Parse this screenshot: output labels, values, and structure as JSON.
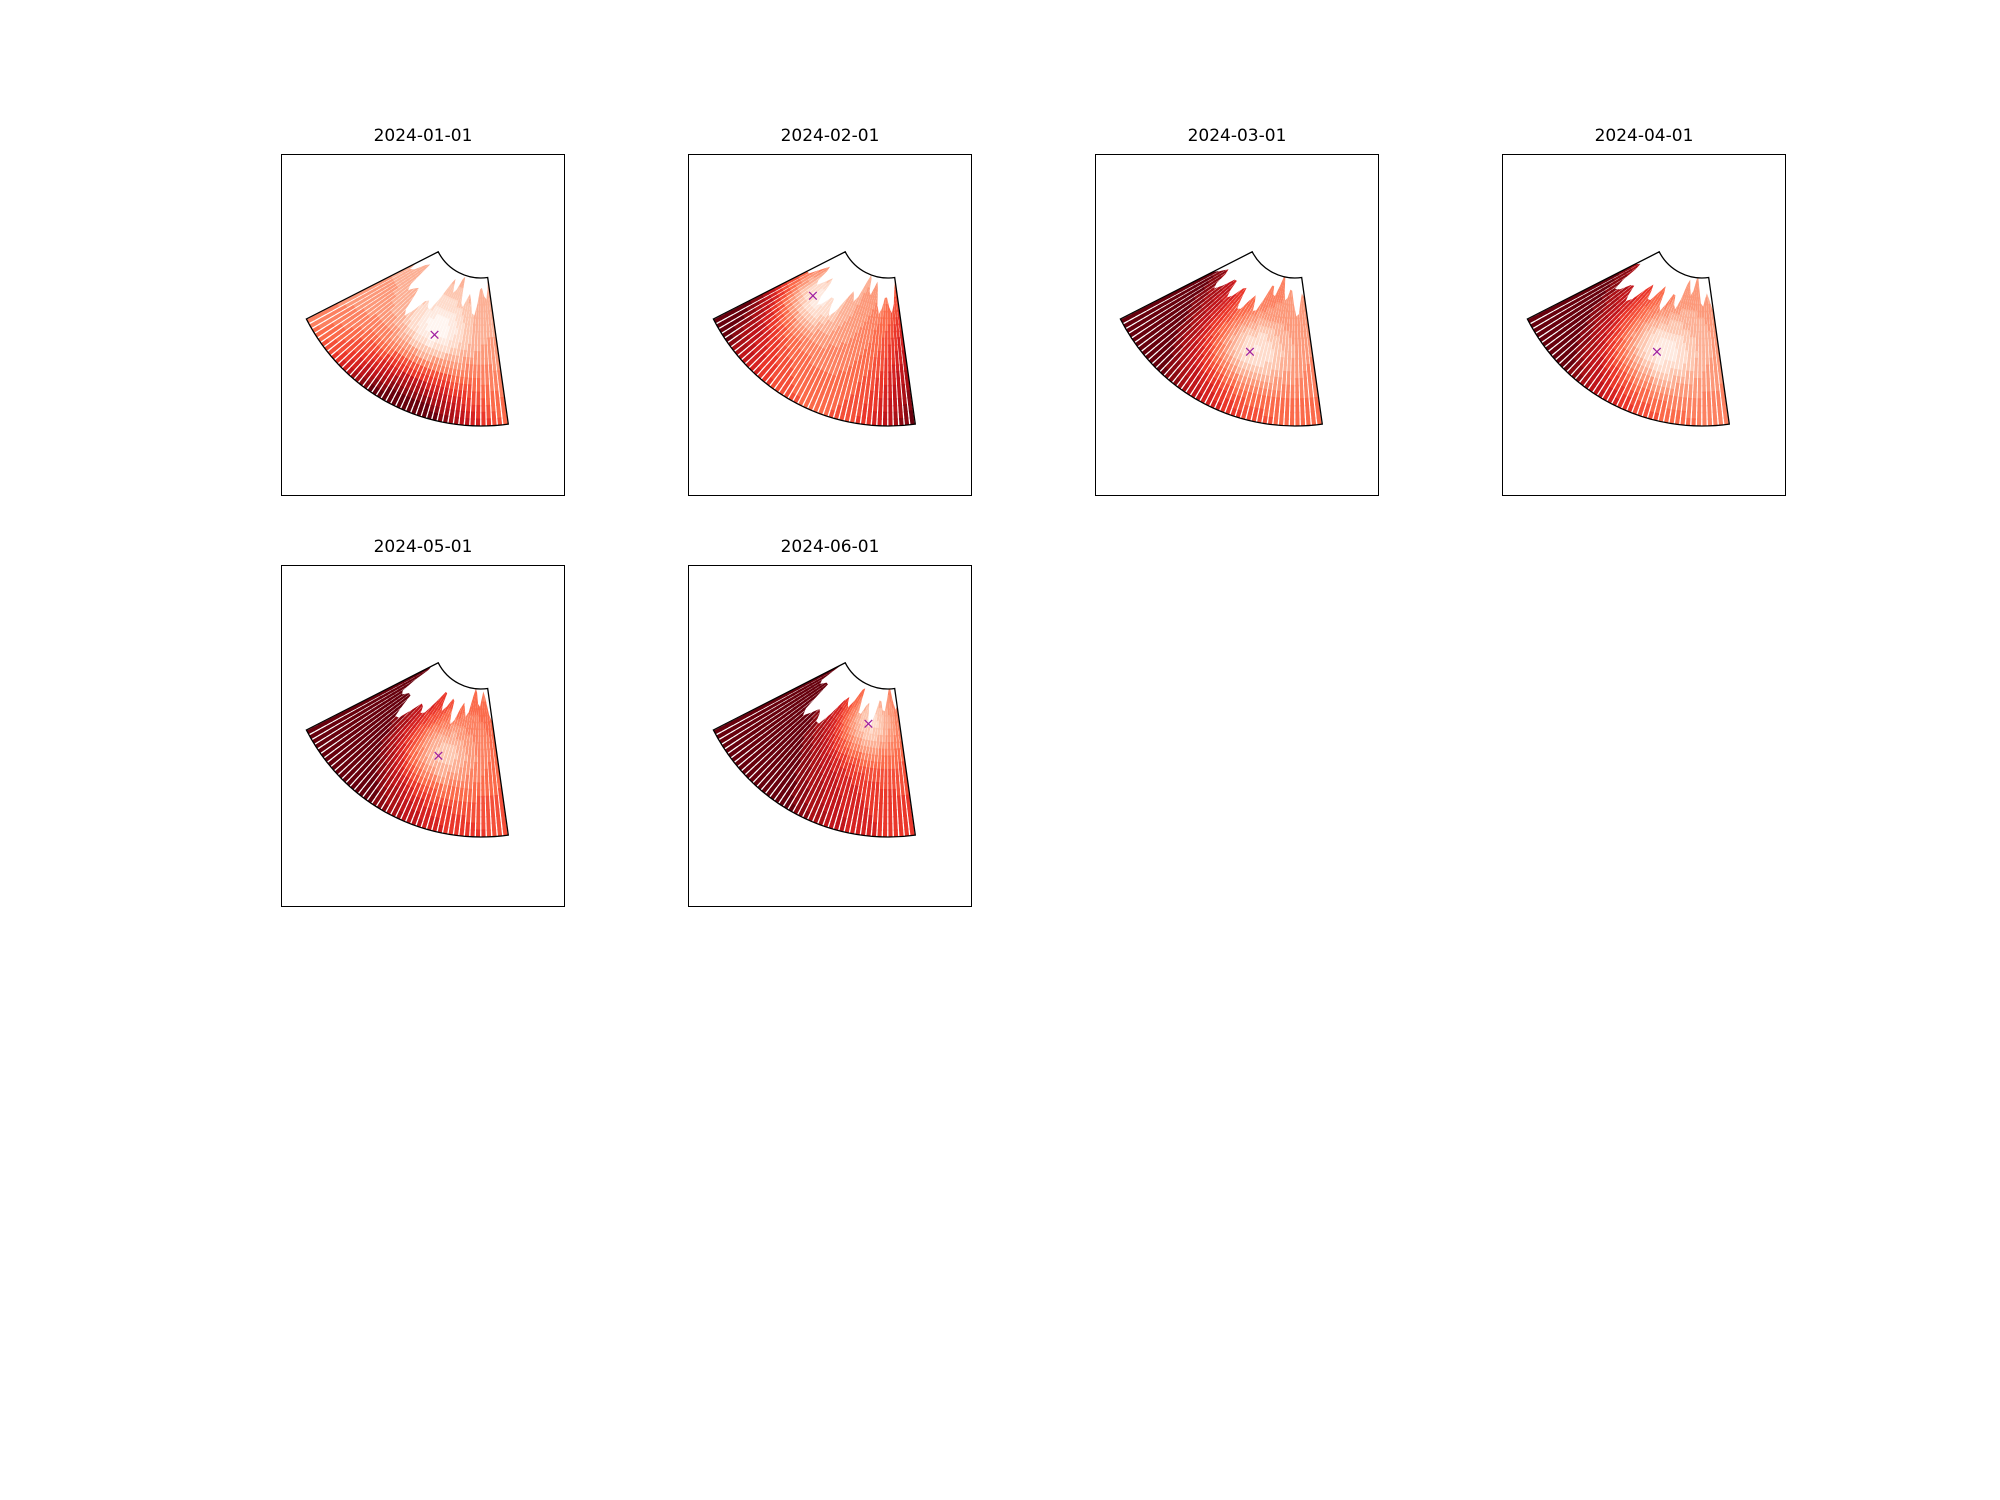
{
  "figure": {
    "background": "#ffffff",
    "colormap": "Reds",
    "marker_color": "#a020a0"
  },
  "chart_data": [
    {
      "type": "heatmap",
      "title": "2024-01-01",
      "marker": "x",
      "hot_edge": "south",
      "hot_strength": 0.85,
      "base_level": 0.28,
      "cold_spot": [
        0.55,
        0.45
      ]
    },
    {
      "type": "heatmap",
      "title": "2024-02-01",
      "marker": "x",
      "hot_edge": "west-east",
      "hot_strength": 0.8,
      "base_level": 0.25,
      "cold_spot": [
        0.2,
        0.35
      ]
    },
    {
      "type": "heatmap",
      "title": "2024-03-01",
      "marker": "x",
      "hot_edge": "west",
      "hot_strength": 0.9,
      "base_level": 0.35,
      "cold_spot": [
        0.6,
        0.55
      ]
    },
    {
      "type": "heatmap",
      "title": "2024-04-01",
      "marker": "x",
      "hot_edge": "west",
      "hot_strength": 0.95,
      "base_level": 0.3,
      "cold_spot": [
        0.6,
        0.55
      ]
    },
    {
      "type": "heatmap",
      "title": "2024-05-01",
      "marker": "x",
      "hot_edge": "west",
      "hot_strength": 1.0,
      "base_level": 0.45,
      "cold_spot": [
        0.6,
        0.5
      ]
    },
    {
      "type": "heatmap",
      "title": "2024-06-01",
      "marker": "x",
      "hot_edge": "west",
      "hot_strength": 1.0,
      "base_level": 0.5,
      "cold_spot": [
        0.7,
        0.25
      ]
    }
  ]
}
